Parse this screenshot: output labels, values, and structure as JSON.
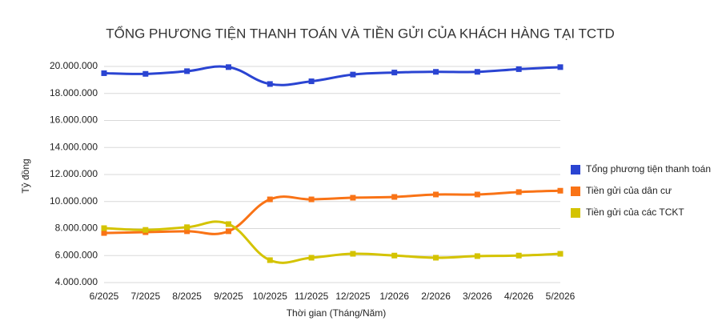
{
  "chart_data": {
    "type": "line",
    "title": "TỔNG PHƯƠNG TIỆN THANH TOÁN VÀ TIỀN GỬI CỦA KHÁCH HÀNG TẠI TCTD",
    "x_label": "Thời gian (Tháng/Năm)",
    "y_label": "Tỷ đồng",
    "categories": [
      "6/2025",
      "7/2025",
      "8/2025",
      "9/2025",
      "10/2025",
      "11/2025",
      "12/2025",
      "1/2026",
      "2/2026",
      "3/2026",
      "4/2026",
      "5/2026"
    ],
    "series": [
      {
        "name": "Tổng phương tiện thanh toán",
        "color": "#2a44d2",
        "values": [
          19500000,
          19450000,
          19650000,
          19950000,
          18700000,
          18900000,
          19400000,
          19550000,
          19600000,
          19600000,
          19800000,
          19950000
        ]
      },
      {
        "name": "Tiền gửi của dân cư",
        "color": "#f97316",
        "values": [
          7670000,
          7730000,
          7800000,
          7800000,
          10160000,
          10160000,
          10280000,
          10340000,
          10520000,
          10520000,
          10700000,
          10800000
        ]
      },
      {
        "name": "Tiền gửi của các TCKT",
        "color": "#d4c300",
        "values": [
          8030000,
          7900000,
          8100000,
          8330000,
          5660000,
          5840000,
          6130000,
          6000000,
          5840000,
          5960000,
          6000000,
          6130000
        ]
      }
    ],
    "ylim": [
      4000000,
      20000000
    ],
    "yticks": [
      {
        "value": 4000000,
        "label": "4.000.000"
      },
      {
        "value": 6000000,
        "label": "6.000.000"
      },
      {
        "value": 8000000,
        "label": "8.000.000"
      },
      {
        "value": 10000000,
        "label": "10.000.000"
      },
      {
        "value": 12000000,
        "label": "12.000.000"
      },
      {
        "value": 14000000,
        "label": "14.000.000"
      },
      {
        "value": 16000000,
        "label": "16.000.000"
      },
      {
        "value": 18000000,
        "label": "18.000.000"
      },
      {
        "value": 20000000,
        "label": "20.000.000"
      }
    ],
    "grid": true,
    "legend": "right"
  }
}
